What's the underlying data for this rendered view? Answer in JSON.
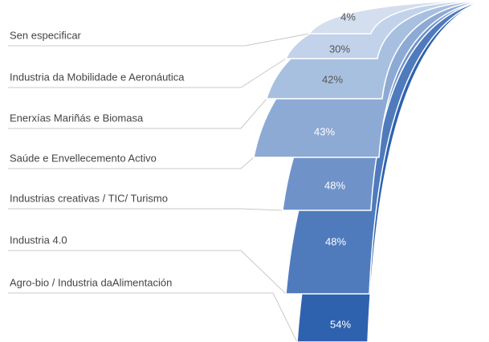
{
  "chart_data": {
    "type": "fan",
    "categories": [
      "Sen especificar",
      "Industria da Mobilidade e Aeronáutica",
      "Enerxías Mariñás e Biomasa",
      "Saúde e Envellecemento Activo",
      "Industrias creativas / TIC/ Turismo",
      "Industria 4.0",
      "Agro-bio / Industria daAlimentación"
    ],
    "values": [
      4,
      30,
      42,
      43,
      48,
      48,
      54
    ],
    "value_labels": [
      "4%",
      "30%",
      "42%",
      "43%",
      "48%",
      "48%",
      "54%"
    ],
    "colors": [
      "#d3deee",
      "#c2d2ea",
      "#a8c0e0",
      "#8daad4",
      "#6f93c9",
      "#4f7bbd",
      "#2f62ae"
    ]
  }
}
